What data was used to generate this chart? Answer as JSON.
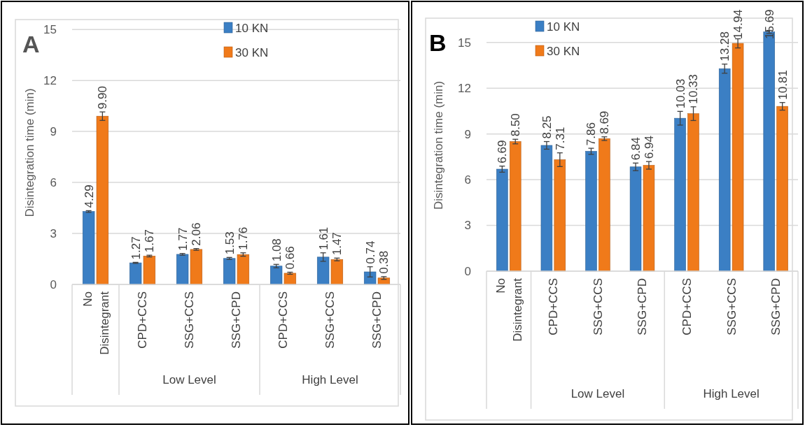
{
  "chart_data": [
    {
      "type": "bar",
      "title": "A",
      "ylabel": "Disintegration time (min)",
      "categories": [
        "No Disintegrant",
        "CPD+CCS",
        "SSG+CCS",
        "SSG+CPD",
        "CPD+CCS",
        "SSG+CCS",
        "SSG+CPD"
      ],
      "annotations": [
        "Low Level",
        "High Level"
      ],
      "ylim": [
        0,
        15.5
      ],
      "yticks": [
        0,
        3,
        6,
        9,
        12,
        15
      ],
      "grid": "y",
      "legend": "top",
      "series": [
        {
          "name": "10 KN",
          "color": "#3b7fc4",
          "values": [
            4.29,
            1.27,
            1.77,
            1.53,
            1.08,
            1.61,
            0.74
          ],
          "errors": [
            0.05,
            0.03,
            0.05,
            0.06,
            0.1,
            0.25,
            0.3
          ],
          "value_labels": [
            "4.29",
            "1.27",
            "1.77",
            "1.53",
            "1.08",
            "1.61",
            "0.74"
          ]
        },
        {
          "name": "30 KN",
          "color": "#f07a1a",
          "values": [
            9.9,
            1.67,
            2.06,
            1.76,
            0.66,
            1.47,
            0.38
          ],
          "errors": [
            0.25,
            0.05,
            0.05,
            0.1,
            0.06,
            0.08,
            0.08
          ],
          "value_labels": [
            "9.90",
            "1.67",
            "2.06",
            "1.76",
            "0.66",
            "1.47",
            "0.38"
          ]
        }
      ]
    },
    {
      "type": "bar",
      "title": "B",
      "ylabel": "Disintegration time (min)",
      "categories": [
        "No Disintegrant",
        "CPD+CCS",
        "SSG+CCS",
        "SSG+CPD",
        "CPD+CCS",
        "SSG+CCS",
        "SSG+CPD"
      ],
      "annotations": [
        "Low Level",
        "High Level"
      ],
      "ylim": [
        0,
        16.5
      ],
      "yticks": [
        0,
        3,
        6,
        9,
        12,
        15
      ],
      "grid": "y",
      "legend": "top left",
      "series": [
        {
          "name": "10 KN",
          "color": "#3b7fc4",
          "values": [
            6.69,
            8.25,
            7.86,
            6.84,
            10.03,
            13.28,
            15.69
          ],
          "errors": [
            0.2,
            0.25,
            0.2,
            0.25,
            0.45,
            0.3,
            0.1
          ],
          "value_labels": [
            "6.69",
            "8.25",
            "7.86",
            "6.84",
            "10.03",
            "13.28",
            "15.69"
          ]
        },
        {
          "name": "30 KN",
          "color": "#f07a1a",
          "values": [
            8.5,
            7.31,
            8.69,
            6.94,
            10.33,
            14.94,
            10.81
          ],
          "errors": [
            0.15,
            0.45,
            0.12,
            0.25,
            0.45,
            0.3,
            0.25
          ],
          "value_labels": [
            "8.50",
            "7.31",
            "8.69",
            "6.94",
            "10.33",
            "14.94",
            "10.81"
          ]
        }
      ]
    }
  ]
}
